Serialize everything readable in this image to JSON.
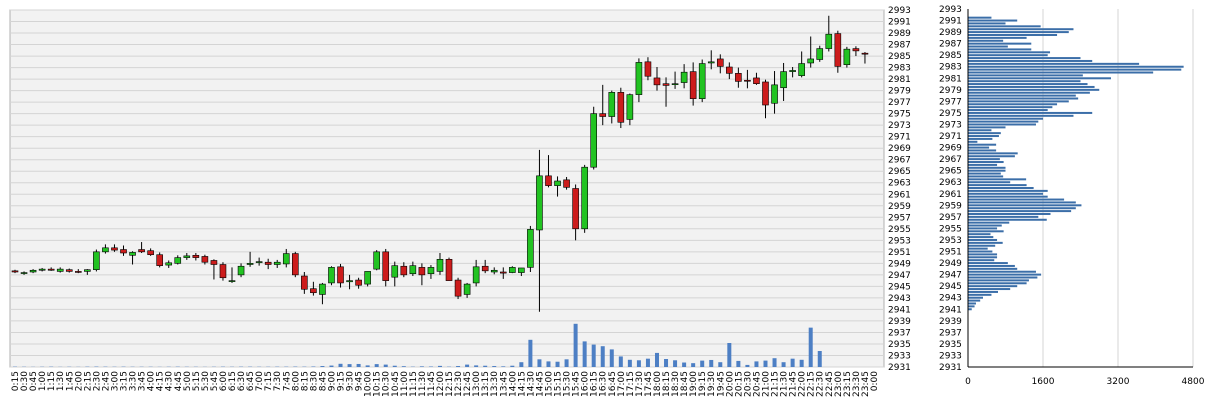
{
  "colors": {
    "background": "#ffffff",
    "plot_background": "#f2f2f2",
    "grid": "#d4d4d4",
    "up_candle": "#22c322",
    "down_candle": "#cc1c1c",
    "wick": "#000000",
    "volume_bar": "#4d7fc4",
    "profile_bar": "#3b6ea8",
    "divider": "#808080"
  },
  "chart_data": [
    {
      "type": "candlestick",
      "title": "",
      "xlabel": "",
      "ylabel": "",
      "ylim": [
        2931,
        2993
      ],
      "y_ticks": [
        2931,
        2933,
        2935,
        2937,
        2939,
        2941,
        2943,
        2945,
        2947,
        2949,
        2951,
        2953,
        2955,
        2957,
        2959,
        2961,
        2963,
        2965,
        2967,
        2969,
        2971,
        2973,
        2975,
        2977,
        2979,
        2981,
        2983,
        2985,
        2987,
        2989,
        2991,
        2993
      ],
      "x_labels": [
        "0:15",
        "0:30",
        "0:45",
        "1:00",
        "1:15",
        "1:30",
        "1:45",
        "2:00",
        "2:15",
        "2:30",
        "2:45",
        "3:00",
        "3:15",
        "3:30",
        "3:45",
        "4:00",
        "4:15",
        "4:30",
        "4:45",
        "5:00",
        "5:15",
        "5:30",
        "5:45",
        "6:00",
        "6:15",
        "6:30",
        "6:45",
        "7:00",
        "7:15",
        "7:30",
        "7:45",
        "8:00",
        "8:15",
        "8:30",
        "8:45",
        "9:00",
        "9:15",
        "9:30",
        "9:45",
        "10:00",
        "10:15",
        "10:30",
        "10:45",
        "11:00",
        "11:15",
        "11:30",
        "11:45",
        "12:00",
        "12:15",
        "12:30",
        "12:45",
        "13:00",
        "13:15",
        "13:30",
        "13:45",
        "14:00",
        "14:15",
        "14:30",
        "14:45",
        "15:00",
        "15:15",
        "15:30",
        "15:45",
        "16:00",
        "16:15",
        "16:30",
        "16:45",
        "17:00",
        "17:15",
        "17:30",
        "17:45",
        "18:00",
        "18:15",
        "18:30",
        "18:45",
        "19:00",
        "19:15",
        "19:30",
        "19:45",
        "20:00",
        "20:15",
        "20:30",
        "20:45",
        "21:00",
        "21:15",
        "21:30",
        "21:45",
        "22:00",
        "22:15",
        "22:30",
        "22:45",
        "23:00",
        "23:15",
        "23:30",
        "23:45",
        "0:00"
      ],
      "candles": [
        [
          2947.7,
          2947.9,
          2947.3,
          2947.5
        ],
        [
          2947.3,
          2947.6,
          2947.0,
          2947.4
        ],
        [
          2947.5,
          2948.0,
          2947.3,
          2947.8
        ],
        [
          2947.8,
          2948.2,
          2947.6,
          2948.0
        ],
        [
          2948.0,
          2948.3,
          2947.7,
          2947.8
        ],
        [
          2947.6,
          2948.3,
          2947.4,
          2948.0
        ],
        [
          2947.9,
          2948.1,
          2947.4,
          2947.6
        ],
        [
          2947.6,
          2948.0,
          2947.3,
          2947.5
        ],
        [
          2947.6,
          2948.0,
          2947.0,
          2947.9
        ],
        [
          2947.9,
          2951.4,
          2947.6,
          2951.0
        ],
        [
          2951.0,
          2952.3,
          2950.7,
          2951.7
        ],
        [
          2951.7,
          2952.3,
          2951.0,
          2951.3
        ],
        [
          2951.4,
          2952.1,
          2950.3,
          2950.8
        ],
        [
          2950.4,
          2951.1,
          2948.8,
          2950.9
        ],
        [
          2951.4,
          2952.7,
          2950.8,
          2951.0
        ],
        [
          2951.2,
          2951.6,
          2950.3,
          2950.5
        ],
        [
          2950.5,
          2950.9,
          2948.3,
          2948.6
        ],
        [
          2948.7,
          2949.5,
          2948.2,
          2949.1
        ],
        [
          2949.0,
          2950.4,
          2948.8,
          2950.0
        ],
        [
          2950.0,
          2950.8,
          2949.6,
          2950.3
        ],
        [
          2950.4,
          2950.8,
          2949.5,
          2950.0
        ],
        [
          2950.2,
          2950.5,
          2948.8,
          2949.2
        ],
        [
          2949.5,
          2949.7,
          2946.2,
          2948.8
        ],
        [
          2948.8,
          2949.2,
          2946.0,
          2946.5
        ],
        [
          2946.0,
          2948.3,
          2945.6,
          2946.0
        ],
        [
          2947.0,
          2949.0,
          2946.6,
          2948.5
        ],
        [
          2948.8,
          2951.0,
          2948.4,
          2949.0
        ],
        [
          2949.2,
          2950.0,
          2948.6,
          2949.3
        ],
        [
          2949.2,
          2949.8,
          2948.0,
          2948.8
        ],
        [
          2948.8,
          2949.6,
          2948.2,
          2949.2
        ],
        [
          2948.9,
          2951.5,
          2948.3,
          2950.7
        ],
        [
          2950.7,
          2951.0,
          2946.6,
          2947.0
        ],
        [
          2946.8,
          2947.5,
          2943.7,
          2944.5
        ],
        [
          2944.6,
          2945.8,
          2943.4,
          2943.9
        ],
        [
          2943.6,
          2945.6,
          2941.9,
          2945.4
        ],
        [
          2945.6,
          2948.5,
          2945.2,
          2948.3
        ],
        [
          2948.4,
          2948.9,
          2944.8,
          2945.6
        ],
        [
          2945.8,
          2947.0,
          2944.5,
          2946.0
        ],
        [
          2946.1,
          2946.5,
          2944.6,
          2945.2
        ],
        [
          2945.4,
          2947.6,
          2945.0,
          2947.6
        ],
        [
          2948.0,
          2951.3,
          2947.8,
          2951.0
        ],
        [
          2951.0,
          2951.5,
          2945.0,
          2946.0
        ],
        [
          2946.6,
          2949.3,
          2945.0,
          2948.6
        ],
        [
          2948.5,
          2949.2,
          2946.6,
          2947.0
        ],
        [
          2947.2,
          2949.3,
          2946.8,
          2948.6
        ],
        [
          2948.3,
          2949.0,
          2945.2,
          2947.0
        ],
        [
          2947.2,
          2948.7,
          2946.3,
          2948.3
        ],
        [
          2947.6,
          2950.8,
          2947.0,
          2949.7
        ],
        [
          2949.7,
          2950.0,
          2946.0,
          2946.0
        ],
        [
          2946.1,
          2946.5,
          2942.8,
          2943.3
        ],
        [
          2943.6,
          2945.6,
          2943.0,
          2945.4
        ],
        [
          2945.6,
          2949.6,
          2945.0,
          2948.4
        ],
        [
          2948.5,
          2949.6,
          2947.3,
          2947.7
        ],
        [
          2947.5,
          2948.3,
          2947.1,
          2947.8
        ],
        [
          2947.5,
          2948.3,
          2946.3,
          2947.3
        ],
        [
          2947.4,
          2948.5,
          2947.3,
          2948.3
        ],
        [
          2947.4,
          2948.2,
          2946.8,
          2948.2
        ],
        [
          2948.3,
          2955.5,
          2947.5,
          2954.9
        ],
        [
          2954.8,
          2968.7,
          2940.6,
          2964.2
        ],
        [
          2964.2,
          2967.8,
          2962.2,
          2962.5
        ],
        [
          2962.5,
          2964.1,
          2960.6,
          2963.3
        ],
        [
          2963.5,
          2964.0,
          2961.8,
          2962.2
        ],
        [
          2962.0,
          2962.7,
          2953.0,
          2955.0
        ],
        [
          2955.0,
          2966.1,
          2954.3,
          2965.7
        ],
        [
          2965.7,
          2976.2,
          2965.3,
          2975.0
        ],
        [
          2975.0,
          2980.0,
          2973.0,
          2974.5
        ],
        [
          2974.5,
          2979.0,
          2973.3,
          2978.7
        ],
        [
          2978.7,
          2979.5,
          2972.5,
          2973.5
        ],
        [
          2974.0,
          2978.5,
          2973.0,
          2978.3
        ],
        [
          2978.3,
          2984.6,
          2977.0,
          2983.9
        ],
        [
          2984.0,
          2984.8,
          2980.8,
          2981.5
        ],
        [
          2981.2,
          2983.1,
          2979.0,
          2980.0
        ],
        [
          2980.2,
          2981.3,
          2976.2,
          2979.9
        ],
        [
          2980.2,
          2982.3,
          2979.3,
          2980.2
        ],
        [
          2980.4,
          2983.6,
          2979.4,
          2982.2
        ],
        [
          2982.3,
          2983.9,
          2976.4,
          2977.6
        ],
        [
          2977.6,
          2984.4,
          2977.0,
          2983.7
        ],
        [
          2983.8,
          2986.0,
          2982.7,
          2984.0
        ],
        [
          2984.5,
          2985.3,
          2982.0,
          2983.2
        ],
        [
          2983.1,
          2983.9,
          2981.0,
          2982.0
        ],
        [
          2982.0,
          2983.0,
          2979.5,
          2980.6
        ],
        [
          2980.8,
          2982.6,
          2979.4,
          2980.7
        ],
        [
          2981.2,
          2982.1,
          2980.0,
          2980.2
        ],
        [
          2980.5,
          2980.9,
          2974.2,
          2976.5
        ],
        [
          2976.8,
          2982.4,
          2975.0,
          2980.0
        ],
        [
          2979.5,
          2983.8,
          2977.2,
          2982.3
        ],
        [
          2982.3,
          2983.1,
          2981.3,
          2982.5
        ],
        [
          2981.6,
          2985.8,
          2981.3,
          2983.7
        ],
        [
          2983.8,
          2988.4,
          2983.0,
          2984.5
        ],
        [
          2984.4,
          2986.8,
          2984.0,
          2986.3
        ],
        [
          2986.3,
          2992.0,
          2985.8,
          2988.8
        ],
        [
          2988.9,
          2989.4,
          2982.1,
          2983.2
        ],
        [
          2983.5,
          2986.6,
          2983.0,
          2986.2
        ],
        [
          2986.3,
          2986.7,
          2985.0,
          2985.9
        ],
        [
          2985.5,
          2985.7,
          2983.7,
          2985.4
        ]
      ],
      "volume_ylim": [
        0,
        3000
      ],
      "volume": [
        20,
        15,
        10,
        15,
        20,
        10,
        15,
        10,
        20,
        25,
        20,
        15,
        20,
        15,
        15,
        15,
        10,
        15,
        20,
        15,
        15,
        10,
        15,
        20,
        15,
        20,
        20,
        15,
        15,
        20,
        20,
        25,
        20,
        30,
        60,
        90,
        200,
        180,
        190,
        100,
        180,
        150,
        80,
        50,
        20,
        40,
        30,
        70,
        20,
        60,
        150,
        100,
        80,
        60,
        40,
        80,
        300,
        1700,
        480,
        350,
        330,
        480,
        2700,
        1600,
        1400,
        1300,
        1100,
        660,
        450,
        420,
        520,
        880,
        500,
        420,
        280,
        240,
        400,
        440,
        300,
        1500,
        380,
        130,
        350,
        400,
        550,
        300,
        520,
        450,
        2460,
        1000,
        0,
        0,
        0,
        0
      ]
    },
    {
      "type": "bar",
      "orientation": "horizontal",
      "title": "",
      "xlabel": "",
      "ylabel": "",
      "xlim": [
        0,
        4800
      ],
      "x_ticks": [
        0,
        1600,
        3200,
        4800
      ],
      "y_ticks": [
        2931,
        2933,
        2935,
        2937,
        2939,
        2941,
        2943,
        2945,
        2947,
        2949,
        2951,
        2953,
        2955,
        2957,
        2959,
        2961,
        2963,
        2965,
        2967,
        2969,
        2971,
        2973,
        2975,
        2977,
        2979,
        2981,
        2983,
        2985,
        2987,
        2989,
        2991,
        2993
      ],
      "price_levels": [
        2941.0,
        2941.5,
        2942.0,
        2942.5,
        2943.0,
        2943.5,
        2944.0,
        2944.5,
        2945.0,
        2945.5,
        2946.0,
        2946.5,
        2947.0,
        2947.5,
        2948.0,
        2948.5,
        2949.0,
        2949.5,
        2950.0,
        2950.5,
        2951.0,
        2951.5,
        2952.0,
        2952.5,
        2953.0,
        2953.5,
        2954.0,
        2954.5,
        2955.0,
        2955.5,
        2956.0,
        2956.5,
        2957.0,
        2957.5,
        2958.0,
        2958.5,
        2959.0,
        2959.5,
        2960.0,
        2960.5,
        2961.0,
        2961.5,
        2962.0,
        2962.5,
        2963.0,
        2963.5,
        2964.0,
        2964.5,
        2965.0,
        2965.5,
        2966.0,
        2966.5,
        2967.0,
        2967.5,
        2968.0,
        2968.5,
        2969.0,
        2969.5,
        2970.0,
        2970.5,
        2971.0,
        2971.5,
        2972.0,
        2972.5,
        2973.0,
        2973.5,
        2974.0,
        2974.5,
        2975.0,
        2975.5,
        2976.0,
        2976.5,
        2977.0,
        2977.5,
        2978.0,
        2978.5,
        2979.0,
        2979.5,
        2980.0,
        2980.5,
        2981.0,
        2981.5,
        2982.0,
        2982.5,
        2983.0,
        2983.5,
        2984.0,
        2984.5,
        2985.0,
        2985.5,
        2986.0,
        2986.5,
        2987.0,
        2987.5,
        2988.0,
        2988.5,
        2989.0,
        2989.5,
        2990.0,
        2990.5,
        2991.0,
        2991.5
      ],
      "values": [
        80,
        140,
        170,
        260,
        320,
        500,
        640,
        900,
        1050,
        1250,
        1300,
        1480,
        1560,
        1450,
        1050,
        1000,
        850,
        560,
        620,
        620,
        520,
        420,
        580,
        740,
        620,
        540,
        480,
        760,
        620,
        720,
        880,
        1680,
        1500,
        1760,
        2200,
        2300,
        2420,
        2300,
        2050,
        1700,
        1600,
        1700,
        1400,
        1250,
        900,
        1240,
        750,
        700,
        800,
        800,
        620,
        760,
        680,
        1000,
        1060,
        600,
        450,
        600,
        200,
        520,
        660,
        700,
        500,
        800,
        1450,
        1500,
        1600,
        2250,
        2650,
        1700,
        1800,
        1900,
        2150,
        2350,
        2300,
        2600,
        2800,
        2700,
        2550,
        2400,
        3050,
        2450,
        3950,
        4550,
        4600,
        3650,
        2650,
        2400,
        1700,
        1750,
        1350,
        850,
        1350,
        750,
        1250,
        1900,
        2150,
        2250,
        1550,
        800,
        1050,
        500
      ]
    }
  ]
}
